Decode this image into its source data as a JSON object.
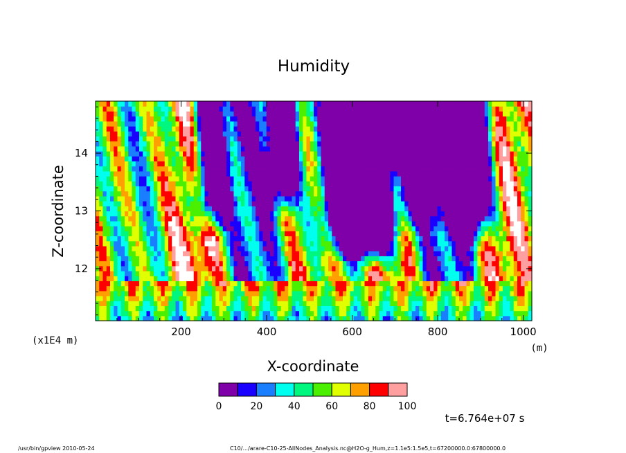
{
  "chart_data": {
    "type": "heatmap",
    "title": "Humidity",
    "xlabel": "X-coordinate",
    "ylabel": "Z-coordinate",
    "x_unit": "(m)",
    "y_unit": "(x1E4 m)",
    "xlim": [
      0,
      1020
    ],
    "ylim": [
      11.1,
      14.9
    ],
    "x_ticks": [
      200,
      400,
      600,
      800,
      1000
    ],
    "x_tick_labels": [
      "200",
      "400",
      "600",
      "800",
      "1000"
    ],
    "y_ticks": [
      12,
      13,
      14
    ],
    "y_tick_labels": [
      "12",
      "13",
      "14"
    ],
    "colorbar": {
      "levels": [
        0,
        10,
        20,
        30,
        40,
        50,
        60,
        70,
        80,
        90,
        100
      ],
      "labels": [
        "0",
        "20",
        "40",
        "60",
        "80",
        "100"
      ],
      "label_values": [
        0,
        20,
        40,
        60,
        80,
        100
      ],
      "colors": [
        "#7f00a8",
        "#1a00ff",
        "#1a7fff",
        "#00ffef",
        "#00f77f",
        "#4bef00",
        "#e0ff00",
        "#ff9f00",
        "#ff0000",
        "#ff9f9f"
      ]
    },
    "above_max_color": "#ffffff",
    "time_label": "t=6.764e+07 s"
  },
  "footer": {
    "left": "/usr/bin/gpview   2010-05-24",
    "right": "C10/.../arare-C10-25-AllNodes_Analysis.nc@H2O-g_Hum,z=1.1e5:1.5e5,t=67200000.0:67800000.0"
  }
}
